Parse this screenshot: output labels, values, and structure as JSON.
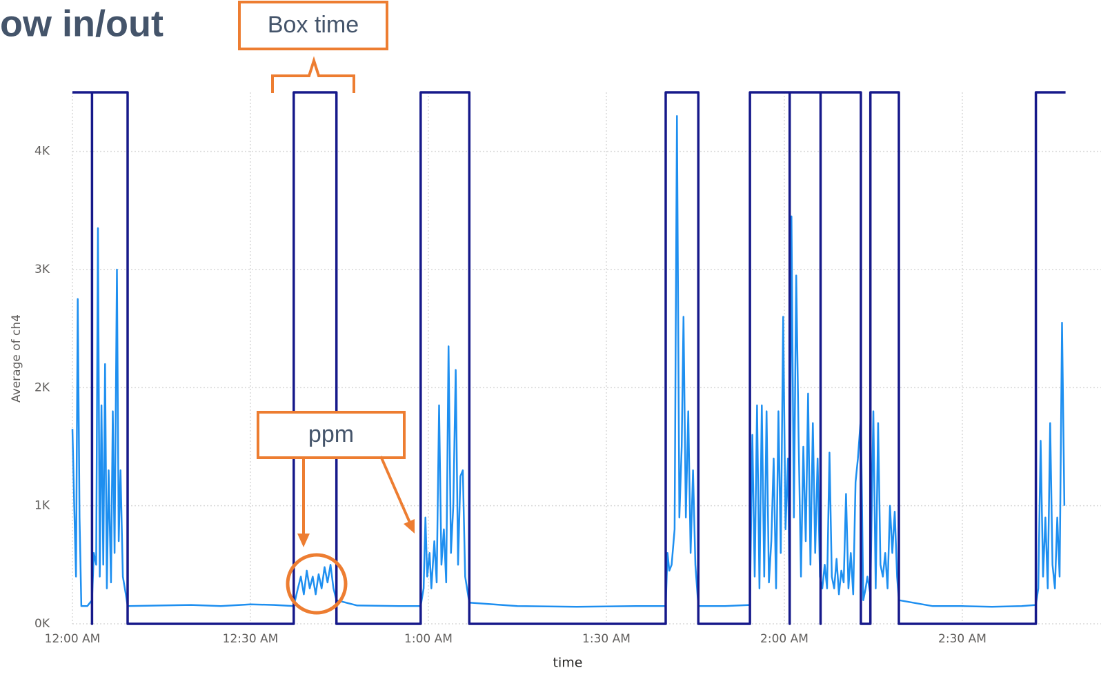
{
  "chart_data": {
    "type": "line",
    "title": "ow in/out",
    "annotations": [
      "Box time",
      "ppm"
    ],
    "x_label": "time",
    "y_label": "Average of ch4",
    "xlim": [
      0,
      168
    ],
    "xticks": [
      {
        "value": 0,
        "label": "12:00 AM"
      },
      {
        "value": 30,
        "label": "12:30 AM"
      },
      {
        "value": 60,
        "label": "1:00 AM"
      },
      {
        "value": 90,
        "label": "1:30 AM"
      },
      {
        "value": 120,
        "label": "2:00 AM"
      },
      {
        "value": 150,
        "label": "2:30 AM"
      }
    ],
    "ylim": [
      0,
      4500
    ],
    "yticks": [
      {
        "value": 0,
        "label": "0K"
      },
      {
        "value": 1000,
        "label": "1K"
      },
      {
        "value": 2000,
        "label": "2K"
      },
      {
        "value": 3000,
        "label": "3K"
      },
      {
        "value": 4000,
        "label": "4K"
      }
    ],
    "grid": true,
    "series": [
      {
        "color": "#1e8ff0",
        "x": [
          0,
          0.3,
          0.6,
          0.9,
          1.2,
          1.5,
          2.5,
          3.3,
          3.6,
          4.0,
          4.3,
          4.6,
          4.9,
          5.2,
          5.5,
          5.8,
          6.1,
          6.5,
          6.8,
          7.1,
          7.5,
          7.8,
          8.1,
          8.5,
          9.0,
          9.3,
          15,
          20,
          25,
          30,
          34,
          37.3,
          38,
          38.5,
          39,
          39.5,
          40,
          40.5,
          41,
          41.5,
          42,
          42.5,
          43,
          43.5,
          44,
          44.5,
          48,
          55,
          58.7,
          59.2,
          59.5,
          59.8,
          60.2,
          60.5,
          61,
          61.4,
          61.8,
          62.2,
          62.6,
          63,
          63.4,
          63.8,
          64.2,
          64.6,
          65,
          65.4,
          65.8,
          66.2,
          66.9,
          75,
          85,
          95,
          100,
          100.3,
          100.6,
          101,
          101.5,
          101.9,
          102.3,
          102.7,
          103,
          103.4,
          103.8,
          104.2,
          104.6,
          105,
          105.5,
          110,
          114.2,
          114.6,
          115,
          115.4,
          115.8,
          116.2,
          116.6,
          117,
          117.4,
          117.8,
          118.2,
          118.6,
          119,
          119.4,
          119.8,
          120.2,
          120.6,
          120.9,
          121.2,
          121.6,
          122,
          122.4,
          122.8,
          123.2,
          123.6,
          124,
          124.4,
          124.8,
          125.2,
          125.6,
          126,
          126.4,
          126.8,
          127.2,
          127.6,
          128,
          128.4,
          128.8,
          129.2,
          129.6,
          130,
          130.4,
          130.8,
          131.2,
          131.6,
          132,
          132.4,
          132.9,
          133.3,
          133.7,
          134,
          134.5,
          135,
          135.4,
          135.8,
          136.2,
          136.6,
          137,
          137.4,
          137.8,
          138.2,
          138.6,
          139,
          139.3,
          145,
          150,
          155,
          160,
          162.4,
          162.8,
          163.2,
          163.6,
          164,
          164.4,
          164.8,
          165.2,
          165.6,
          166,
          166.4,
          166.8,
          167.2
        ],
        "values": [
          1650,
          1000,
          400,
          2750,
          900,
          150,
          150,
          200,
          600,
          500,
          3350,
          400,
          1850,
          500,
          2200,
          300,
          1300,
          350,
          1800,
          600,
          3000,
          700,
          1300,
          400,
          250,
          150,
          155,
          160,
          150,
          165,
          160,
          150,
          300,
          400,
          250,
          450,
          300,
          400,
          250,
          420,
          300,
          480,
          350,
          500,
          300,
          200,
          155,
          150,
          150,
          300,
          900,
          400,
          600,
          300,
          700,
          350,
          1850,
          500,
          800,
          350,
          2350,
          600,
          1000,
          2150,
          500,
          1250,
          1300,
          400,
          180,
          150,
          145,
          150,
          150,
          600,
          450,
          500,
          800,
          4300,
          900,
          1500,
          2600,
          900,
          1800,
          600,
          1300,
          500,
          150,
          150,
          160,
          1600,
          400,
          1850,
          300,
          1850,
          400,
          1800,
          350,
          700,
          1400,
          300,
          1800,
          600,
          2600,
          800,
          1400,
          200,
          3450,
          900,
          2950,
          1600,
          400,
          1500,
          700,
          1950,
          500,
          1700,
          600,
          1400,
          400,
          300,
          500,
          300,
          1450,
          400,
          300,
          550,
          250,
          450,
          350,
          1100,
          300,
          600,
          250,
          1200,
          1400,
          1750,
          200,
          300,
          400,
          250,
          1800,
          300,
          1700,
          500,
          400,
          600,
          300,
          1000,
          600,
          950,
          400,
          200,
          150,
          150,
          145,
          150,
          160,
          300,
          1550,
          400,
          900,
          300,
          1700,
          500,
          300,
          900,
          400,
          2550,
          1000
        ]
      },
      {
        "color": "#16198a",
        "x": [
          0,
          3.3,
          3.3,
          3.3,
          9.3,
          9.3,
          37.3,
          37.3,
          44.5,
          44.5,
          58.7,
          58.7,
          66.9,
          66.9,
          100,
          100,
          105.5,
          105.5,
          114.2,
          114.2,
          120.9,
          120.9,
          120.9,
          126.1,
          126.1,
          126.1,
          132.9,
          132.9,
          134.5,
          134.5,
          139.3,
          139.3,
          162.4,
          162.4,
          167.4
        ],
        "values": [
          4500,
          4500,
          0,
          4500,
          4500,
          0,
          0,
          4500,
          4500,
          0,
          0,
          4500,
          4500,
          0,
          0,
          4500,
          4500,
          0,
          0,
          4500,
          4500,
          0,
          4500,
          4500,
          0,
          4500,
          4500,
          0,
          0,
          4500,
          4500,
          0,
          0,
          4500,
          4500
        ]
      }
    ]
  }
}
